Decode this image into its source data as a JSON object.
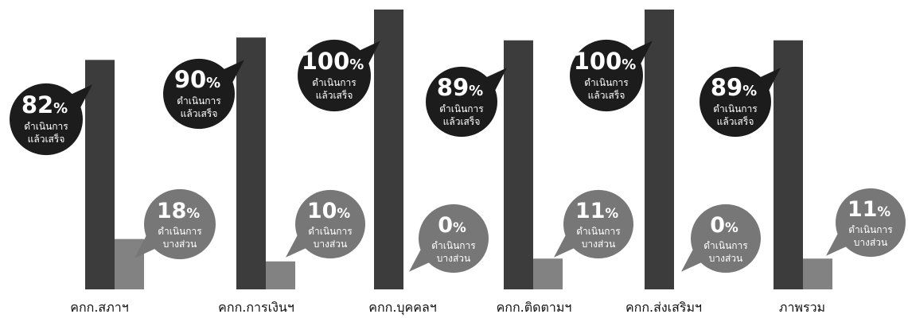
{
  "chart_data": {
    "type": "bar",
    "categories": [
      "คกก.สภาฯ",
      "คกก.การเงินฯ",
      "คกก.บุคคลฯ",
      "คกก.ติดตามฯ",
      "คกก.ส่งเสริมฯ",
      "ภาพรวม"
    ],
    "series": [
      {
        "values": [
          82,
          90,
          100,
          89,
          100,
          89
        ]
      },
      {
        "values": [
          18,
          10,
          0,
          11,
          0,
          11
        ]
      }
    ],
    "bubble_labels": [
      [
        "ดำเนินการ",
        "แล้วเสร็จ"
      ],
      [
        "ดำเนินการ",
        "บางส่วน"
      ]
    ],
    "percent_symbol": "%",
    "ylim": [
      0,
      100
    ],
    "colors": {
      "completed_bar": "#3c3c3c",
      "partial_bar": "#828282",
      "completed_bubble": "#1c1c1c",
      "partial_bubble": "#777777",
      "bubble_text": "#ffffff",
      "label_text": "#111111"
    },
    "grid": false
  }
}
